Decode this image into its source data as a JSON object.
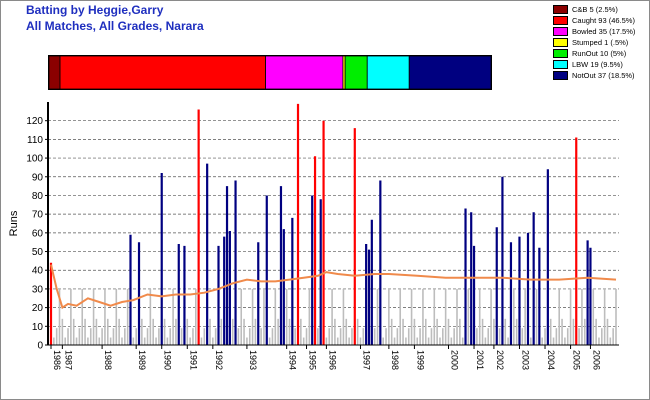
{
  "header": {
    "title_line1": "Batting by Heggie,Garry",
    "title_line2": "All Matches, All Grades, Narara"
  },
  "colors": {
    "title": "#1f2fbf",
    "average_line": "#f08a4b",
    "other_scores": "#bdbdbd",
    "grid": "#555555"
  },
  "chart_data": {
    "type": "bar",
    "title": "Batting by Heggie,Garry",
    "subtitle": "All Matches, All Grades, Narara",
    "ylabel": "Runs",
    "xlabel": "",
    "ylim": [
      0,
      130
    ],
    "yticks": [
      0,
      10,
      20,
      30,
      40,
      50,
      60,
      70,
      80,
      90,
      100,
      110,
      120
    ],
    "grid": true,
    "legend_position": "top-right",
    "dismissals": [
      {
        "label": "C&B 5 (2.5%)",
        "count": 5,
        "percent": 2.5,
        "color": "#8b0000"
      },
      {
        "label": "Caught 93 (46.5%)",
        "count": 93,
        "percent": 46.5,
        "color": "#ff0000"
      },
      {
        "label": "Bowled 35 (17.5%)",
        "count": 35,
        "percent": 17.5,
        "color": "#ff00ff"
      },
      {
        "label": "Stumped 1 (.5%)",
        "count": 1,
        "percent": 0.5,
        "color": "#ffff00"
      },
      {
        "label": "RunOut 10 (5%)",
        "count": 10,
        "percent": 5,
        "color": "#00ee00"
      },
      {
        "label": "LBW 19 (9.5%)",
        "count": 19,
        "percent": 9.5,
        "color": "#00ffff"
      },
      {
        "label": "NotOut 37 (18.5%)",
        "count": 37,
        "percent": 18.5,
        "color": "#000080"
      }
    ],
    "x_tick_labels": [
      "1986",
      "1987",
      "1988",
      "1989",
      "1990",
      "1991",
      "1992",
      "1993",
      "1994",
      "1995",
      "1996",
      "1997",
      "1998",
      "1999",
      "2000",
      "2001",
      "2002",
      "2003",
      "2004",
      "2005",
      "2006"
    ],
    "x_tick_at_innings": [
      1,
      5,
      19,
      31,
      40,
      49,
      58,
      70,
      84,
      91,
      98,
      110,
      120,
      129,
      141,
      150,
      157,
      166,
      175,
      184,
      191
    ],
    "innings_count": 200,
    "highlight_scores": [
      {
        "innings": 1,
        "runs": 44,
        "type": "Caught"
      },
      {
        "innings": 29,
        "runs": 59,
        "type": "NotOut"
      },
      {
        "innings": 32,
        "runs": 55,
        "type": "NotOut"
      },
      {
        "innings": 40,
        "runs": 92,
        "type": "NotOut"
      },
      {
        "innings": 46,
        "runs": 54,
        "type": "NotOut"
      },
      {
        "innings": 48,
        "runs": 53,
        "type": "NotOut"
      },
      {
        "innings": 53,
        "runs": 126,
        "type": "Caught"
      },
      {
        "innings": 56,
        "runs": 97,
        "type": "NotOut"
      },
      {
        "innings": 60,
        "runs": 53,
        "type": "NotOut"
      },
      {
        "innings": 62,
        "runs": 58,
        "type": "NotOut"
      },
      {
        "innings": 63,
        "runs": 85,
        "type": "NotOut"
      },
      {
        "innings": 64,
        "runs": 61,
        "type": "NotOut"
      },
      {
        "innings": 66,
        "runs": 88,
        "type": "NotOut"
      },
      {
        "innings": 74,
        "runs": 55,
        "type": "NotOut"
      },
      {
        "innings": 77,
        "runs": 80,
        "type": "NotOut"
      },
      {
        "innings": 82,
        "runs": 85,
        "type": "NotOut"
      },
      {
        "innings": 83,
        "runs": 62,
        "type": "NotOut"
      },
      {
        "innings": 86,
        "runs": 68,
        "type": "NotOut"
      },
      {
        "innings": 88,
        "runs": 129,
        "type": "Caught"
      },
      {
        "innings": 93,
        "runs": 80,
        "type": "NotOut"
      },
      {
        "innings": 94,
        "runs": 101,
        "type": "Caught"
      },
      {
        "innings": 96,
        "runs": 78,
        "type": "NotOut"
      },
      {
        "innings": 97,
        "runs": 120,
        "type": "Caught"
      },
      {
        "innings": 108,
        "runs": 116,
        "type": "Caught"
      },
      {
        "innings": 112,
        "runs": 54,
        "type": "NotOut"
      },
      {
        "innings": 113,
        "runs": 51,
        "type": "NotOut"
      },
      {
        "innings": 114,
        "runs": 67,
        "type": "NotOut"
      },
      {
        "innings": 117,
        "runs": 88,
        "type": "NotOut"
      },
      {
        "innings": 147,
        "runs": 73,
        "type": "NotOut"
      },
      {
        "innings": 149,
        "runs": 71,
        "type": "NotOut"
      },
      {
        "innings": 150,
        "runs": 53,
        "type": "NotOut"
      },
      {
        "innings": 158,
        "runs": 63,
        "type": "NotOut"
      },
      {
        "innings": 160,
        "runs": 90,
        "type": "NotOut"
      },
      {
        "innings": 163,
        "runs": 55,
        "type": "NotOut"
      },
      {
        "innings": 166,
        "runs": 58,
        "type": "NotOut"
      },
      {
        "innings": 169,
        "runs": 60,
        "type": "NotOut"
      },
      {
        "innings": 171,
        "runs": 71,
        "type": "NotOut"
      },
      {
        "innings": 173,
        "runs": 52,
        "type": "NotOut"
      },
      {
        "innings": 176,
        "runs": 94,
        "type": "NotOut"
      },
      {
        "innings": 186,
        "runs": 111,
        "type": "Caught"
      },
      {
        "innings": 190,
        "runs": 56,
        "type": "NotOut"
      },
      {
        "innings": 191,
        "runs": 52,
        "type": "NotOut"
      }
    ],
    "average_line": [
      {
        "innings": 1,
        "runs": 43
      },
      {
        "innings": 3,
        "runs": 30
      },
      {
        "innings": 5,
        "runs": 20
      },
      {
        "innings": 7,
        "runs": 22
      },
      {
        "innings": 10,
        "runs": 21
      },
      {
        "innings": 14,
        "runs": 25
      },
      {
        "innings": 18,
        "runs": 23
      },
      {
        "innings": 22,
        "runs": 21
      },
      {
        "innings": 26,
        "runs": 23
      },
      {
        "innings": 30,
        "runs": 24
      },
      {
        "innings": 35,
        "runs": 27
      },
      {
        "innings": 40,
        "runs": 26
      },
      {
        "innings": 45,
        "runs": 27
      },
      {
        "innings": 50,
        "runs": 27
      },
      {
        "innings": 55,
        "runs": 28
      },
      {
        "innings": 60,
        "runs": 30
      },
      {
        "innings": 65,
        "runs": 33
      },
      {
        "innings": 70,
        "runs": 35
      },
      {
        "innings": 75,
        "runs": 34
      },
      {
        "innings": 80,
        "runs": 34
      },
      {
        "innings": 85,
        "runs": 35
      },
      {
        "innings": 90,
        "runs": 36
      },
      {
        "innings": 95,
        "runs": 37
      },
      {
        "innings": 98,
        "runs": 39
      },
      {
        "innings": 102,
        "runs": 38
      },
      {
        "innings": 108,
        "runs": 37
      },
      {
        "innings": 115,
        "runs": 38
      },
      {
        "innings": 120,
        "runs": 38
      },
      {
        "innings": 130,
        "runs": 37
      },
      {
        "innings": 140,
        "runs": 36
      },
      {
        "innings": 150,
        "runs": 36
      },
      {
        "innings": 160,
        "runs": 36
      },
      {
        "innings": 170,
        "runs": 35
      },
      {
        "innings": 180,
        "runs": 35
      },
      {
        "innings": 190,
        "runs": 36
      },
      {
        "innings": 200,
        "runs": 35
      }
    ],
    "other_scores_sample": [
      30,
      12,
      5,
      31,
      18,
      9,
      34,
      14,
      6,
      2,
      37,
      10,
      24,
      15,
      4,
      41,
      28,
      7,
      12,
      45,
      38,
      9,
      3,
      17,
      33,
      11,
      46,
      21
    ]
  }
}
